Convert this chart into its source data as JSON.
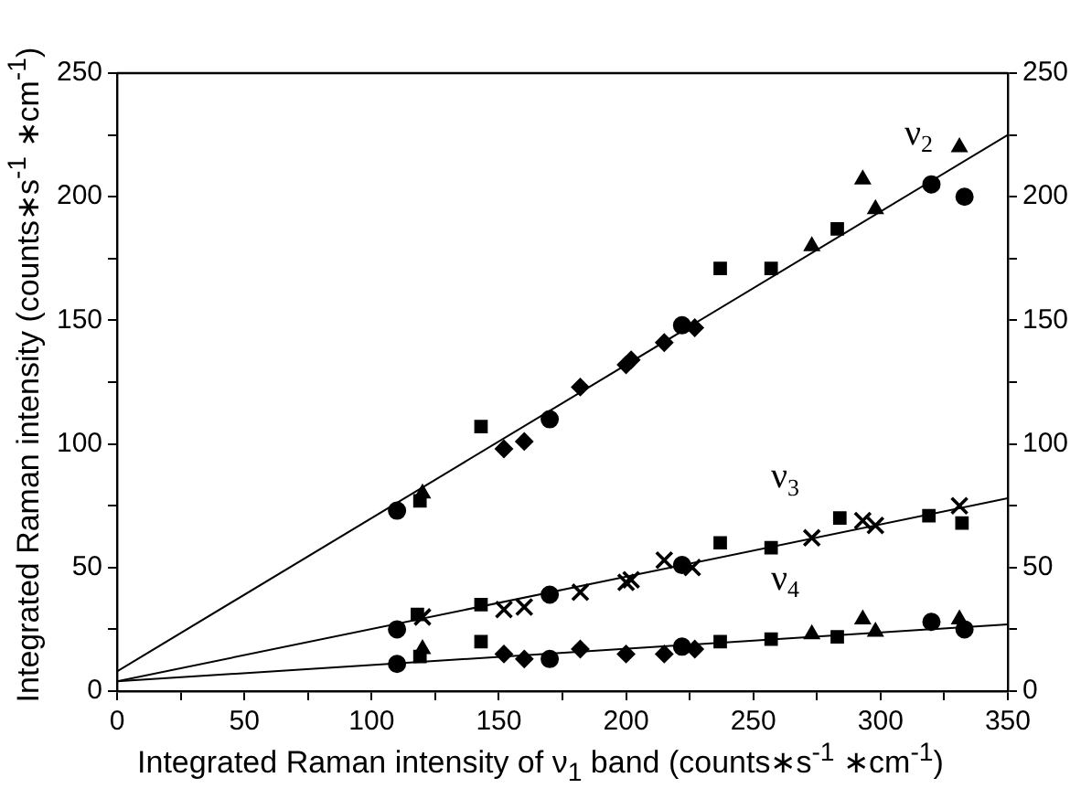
{
  "chart_data": {
    "type": "scatter",
    "xlabel": "Integrated Raman intensity of ν$_{1}$ band (counts∗s$^{-1}$ ∗cm$^{-1}$)",
    "ylabel": "Integrated Raman intensity (counts∗s$^{-1}$ ∗cm$^{-1}$)",
    "xlim": [
      0,
      350
    ],
    "ylim": [
      0,
      250
    ],
    "y2lim": [
      0,
      250
    ],
    "xticks": [
      0,
      {
        "value": 25,
        "label": null
      },
      50,
      {
        "value": 75,
        "label": null
      },
      100,
      {
        "value": 125,
        "label": null
      },
      150,
      {
        "value": 175,
        "label": null
      },
      200,
      {
        "value": 225,
        "label": null
      },
      250,
      {
        "value": 275,
        "label": null
      },
      300,
      {
        "value": 325,
        "label": null
      },
      350
    ],
    "yticks": [
      0,
      {
        "value": 25,
        "label": null
      },
      50,
      {
        "value": 75,
        "label": null
      },
      100,
      {
        "value": 125,
        "label": null
      },
      150,
      {
        "value": 175,
        "label": null
      },
      200,
      {
        "value": 225,
        "label": null
      },
      250
    ],
    "y2ticks": [
      0,
      {
        "value": 25,
        "label": null
      },
      50,
      {
        "value": 75,
        "label": null
      },
      100,
      {
        "value": 125,
        "label": null
      },
      150,
      {
        "value": 175,
        "label": null
      },
      200,
      {
        "value": 225,
        "label": null
      },
      250
    ],
    "grid": false,
    "legend": false,
    "annotations": [
      "ν$_{2}$",
      "ν$_{3}$",
      "ν$_{4}$"
    ],
    "series": [
      {
        "marker": "circle",
        "color": "#000000",
        "x": [
          110,
          170,
          222,
          320,
          333
        ],
        "values": [
          73,
          110,
          148,
          205,
          200
        ]
      },
      {
        "marker": "square",
        "color": "#000000",
        "x": [
          119,
          143,
          237,
          257,
          283
        ],
        "values": [
          77,
          107,
          171,
          171,
          187
        ]
      },
      {
        "marker": "triangle",
        "color": "#000000",
        "x": [
          120,
          273,
          293,
          298,
          331
        ],
        "values": [
          80,
          180,
          207,
          195,
          220
        ]
      },
      {
        "marker": "diamond",
        "color": "#000000",
        "x": [
          152,
          160,
          182,
          200,
          202,
          215,
          227
        ],
        "values": [
          98,
          101,
          123,
          132,
          134,
          141,
          147
        ]
      },
      {
        "marker": "square",
        "color": "#000000",
        "x": [
          118,
          143,
          237,
          257,
          284,
          319,
          332
        ],
        "values": [
          31,
          35,
          60,
          58,
          70,
          71,
          68
        ]
      },
      {
        "marker": "circle",
        "color": "#000000",
        "x": [
          110,
          170,
          222
        ],
        "values": [
          25,
          39,
          51
        ]
      },
      {
        "marker": "cross",
        "color": "#000000",
        "x": [
          120,
          152,
          160,
          182,
          200,
          202,
          215,
          226,
          273,
          293,
          298,
          331
        ],
        "values": [
          30,
          33,
          34,
          40,
          44,
          45,
          53,
          50,
          62,
          69,
          67,
          75
        ]
      },
      {
        "marker": "circle",
        "color": "#000000",
        "x": [
          110,
          170,
          222,
          320,
          333
        ],
        "values": [
          11,
          13,
          18,
          28,
          25
        ]
      },
      {
        "marker": "square",
        "color": "#000000",
        "x": [
          119,
          143,
          237,
          257,
          283
        ],
        "values": [
          14,
          20,
          20,
          21,
          22
        ]
      },
      {
        "marker": "triangle",
        "color": "#000000",
        "x": [
          120,
          273,
          293,
          298,
          331
        ],
        "values": [
          17,
          23,
          29,
          24,
          29
        ]
      },
      {
        "marker": "diamond",
        "color": "#000000",
        "x": [
          152,
          160,
          182,
          200,
          215,
          227
        ],
        "values": [
          15,
          13,
          17,
          15,
          15,
          17
        ]
      },
      {
        "type": "line",
        "marker": "none",
        "color": "#000000",
        "x": [
          0,
          350
        ],
        "values": [
          8,
          225
        ]
      },
      {
        "type": "line",
        "marker": "none",
        "color": "#000000",
        "x": [
          0,
          350
        ],
        "values": [
          4,
          78
        ]
      },
      {
        "type": "line",
        "marker": "none",
        "color": "#000000",
        "x": [
          0,
          350
        ],
        "values": [
          4,
          27
        ]
      }
    ]
  }
}
